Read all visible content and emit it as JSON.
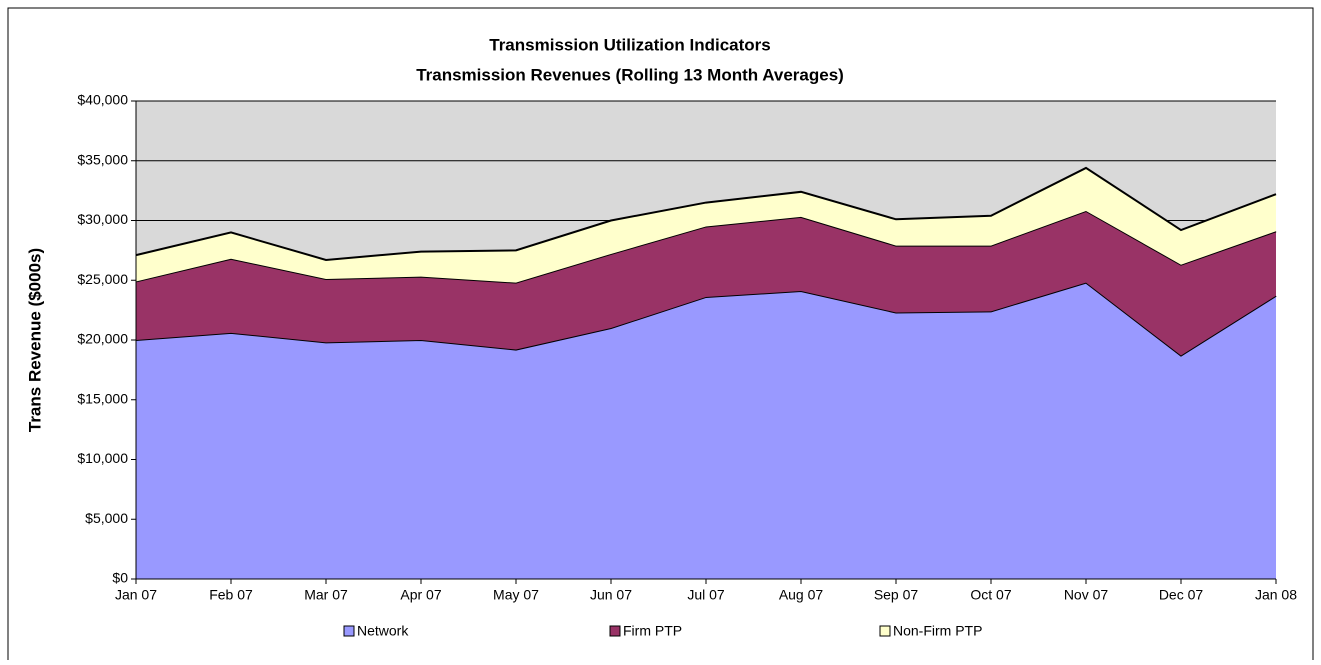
{
  "chart_data": {
    "type": "stacked_area",
    "title": "Transmission Utilization Indicators",
    "subtitle": "Transmission Revenues (Rolling 13 Month Averages)",
    "y_label": "Trans Revenue ($000s)",
    "categories": [
      "Jan 07",
      "Feb 07",
      "Mar 07",
      "Apr 07",
      "May 07",
      "Jun 07",
      "Jul 07",
      "Aug 07",
      "Sep 07",
      "Oct 07",
      "Nov 07",
      "Dec 07",
      "Jan 08"
    ],
    "series": [
      {
        "name": "Network",
        "color": "#9999ff",
        "values": [
          20000,
          20600,
          19800,
          20000,
          19200,
          21000,
          23600,
          24100,
          22300,
          22400,
          24800,
          18700,
          23700
        ]
      },
      {
        "name": "Firm PTP",
        "color": "#993366",
        "values": [
          4900,
          6200,
          5300,
          5300,
          5600,
          6200,
          5900,
          6200,
          5600,
          5500,
          6000,
          7600,
          5400
        ]
      },
      {
        "name": "Non-Firm PTP",
        "color": "#ffffcc",
        "values": [
          2200,
          2200,
          1600,
          2100,
          2700,
          2800,
          2000,
          2100,
          2200,
          2500,
          3600,
          2900,
          3100
        ]
      }
    ],
    "ylim": [
      0,
      40000
    ],
    "yticks": [
      {
        "value": 0,
        "label": "$0"
      },
      {
        "value": 5000,
        "label": "$5,000"
      },
      {
        "value": 10000,
        "label": "$10,000"
      },
      {
        "value": 15000,
        "label": "$15,000"
      },
      {
        "value": 20000,
        "label": "$20,000"
      },
      {
        "value": 25000,
        "label": "$25,000"
      },
      {
        "value": 30000,
        "label": "$30,000"
      },
      {
        "value": 35000,
        "label": "$35,000"
      },
      {
        "value": 40000,
        "label": "$40,000"
      }
    ],
    "grid": true,
    "plot_background": "#d9d9d9",
    "legend": "bottom"
  }
}
